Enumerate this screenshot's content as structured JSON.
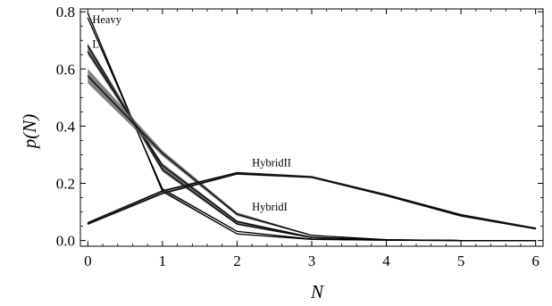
{
  "chart_data": {
    "type": "line",
    "xlabel": "N",
    "ylabel": "p(N)",
    "xlim": [
      -0.1,
      6.1
    ],
    "ylim": [
      -0.02,
      0.81
    ],
    "x_ticks": [
      0,
      1,
      2,
      3,
      4,
      5,
      6
    ],
    "y_ticks": [
      0.0,
      0.2,
      0.4,
      0.6,
      0.8
    ],
    "x_tick_labels": [
      "0",
      "1",
      "2",
      "3",
      "4",
      "5",
      "6"
    ],
    "y_tick_labels": [
      "0.0",
      "0.2",
      "0.4",
      "0.6",
      "0.8"
    ],
    "legend": "none",
    "grid": false,
    "series_color": "#000000",
    "band_color": "#555555",
    "series": [
      {
        "x": [
          0,
          1,
          2,
          3,
          4,
          5,
          6
        ],
        "values": [
          0.795,
          0.172,
          0.023,
          0.004,
          0.001,
          0.0,
          0.0
        ],
        "band": [
          0.005,
          0.004,
          0.002,
          0.001,
          0.0,
          0.0,
          0.0
        ]
      },
      {
        "x": [
          0,
          1,
          2,
          3,
          4,
          5,
          6
        ],
        "values": [
          0.778,
          0.18,
          0.032,
          0.005,
          0.001,
          0.0,
          0.0
        ],
        "band": [
          0.004,
          0.004,
          0.002,
          0.001,
          0.0,
          0.0,
          0.0
        ]
      },
      {
        "x": [
          0,
          1,
          2,
          3,
          4,
          5,
          6
        ],
        "values": [
          0.68,
          0.248,
          0.058,
          0.01,
          0.002,
          0.0,
          0.0
        ],
        "band": [
          0.01,
          0.008,
          0.004,
          0.002,
          0.0,
          0.0,
          0.0
        ]
      },
      {
        "x": [
          0,
          1,
          2,
          3,
          4,
          5,
          6
        ],
        "values": [
          0.66,
          0.262,
          0.066,
          0.011,
          0.002,
          0.0,
          0.0
        ],
        "band": [
          0.01,
          0.008,
          0.004,
          0.002,
          0.0,
          0.0,
          0.0
        ]
      },
      {
        "x": [
          0,
          1,
          2,
          3,
          4,
          5,
          6
        ],
        "values": [
          0.575,
          0.305,
          0.092,
          0.018,
          0.003,
          0.0,
          0.0
        ],
        "band": [
          0.025,
          0.01,
          0.006,
          0.002,
          0.0,
          0.0,
          0.0
        ]
      },
      {
        "x": [
          0,
          1,
          2,
          3,
          4,
          5,
          6
        ],
        "values": [
          0.062,
          0.173,
          0.237,
          0.223,
          0.16,
          0.09,
          0.043
        ],
        "band": [
          0.004,
          0.004,
          0.003,
          0.003,
          0.003,
          0.003,
          0.003
        ]
      },
      {
        "x": [
          0,
          1,
          2,
          3,
          4,
          5,
          6
        ],
        "values": [
          0.058,
          0.165,
          0.233,
          0.221,
          0.157,
          0.086,
          0.041
        ],
        "band": [
          0.004,
          0.004,
          0.003,
          0.003,
          0.003,
          0.003,
          0.003
        ]
      }
    ],
    "annotations": [
      {
        "text": "Heavy",
        "x": 0.06,
        "y": 0.76
      },
      {
        "text": "L",
        "x": 0.06,
        "y": 0.675
      },
      {
        "text": "HybridII",
        "x": 2.2,
        "y": 0.26
      },
      {
        "text": "HybridI",
        "x": 2.2,
        "y": 0.105
      }
    ]
  }
}
